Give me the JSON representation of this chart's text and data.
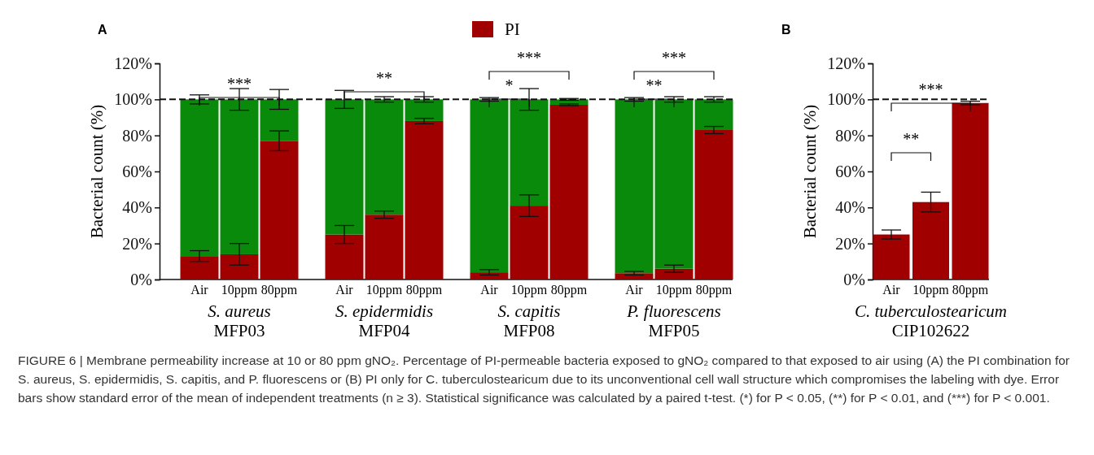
{
  "chart_data": [
    {
      "type": "bar",
      "title": "A",
      "stacked": true,
      "legend": "top",
      "grid": false,
      "ylabel": "Bacterial count (%)",
      "categories": [
        "Air",
        "10ppm",
        "80ppm",
        "Air",
        "10ppm",
        "80ppm",
        "Air",
        "10ppm",
        "80ppm",
        "Air",
        "10ppm",
        "80ppm"
      ],
      "series": [
        {
          "name": "PI",
          "color": "#a00000",
          "values": [
            13,
            14,
            77,
            25,
            36,
            88,
            4,
            41,
            97,
            3.5,
            6,
            83
          ],
          "errors": [
            3,
            6,
            5.5,
            5,
            2,
            1.5,
            1.5,
            6,
            0.5,
            1,
            2,
            2
          ]
        },
        {
          "color": "#0a8a0a",
          "values": [
            87,
            86,
            23,
            75,
            64,
            12,
            96,
            59,
            3,
            96.5,
            94,
            17
          ],
          "errors": [
            2.5,
            6,
            5.5,
            5,
            1.5,
            1.5,
            1,
            6,
            0.5,
            1,
            1.5,
            1.5
          ]
        }
      ],
      "ylim": [
        0,
        120
      ],
      "yticks": [
        {
          "value": 0,
          "label": "0%"
        },
        {
          "value": 20,
          "label": "20%"
        },
        {
          "value": 40,
          "label": "40%"
        },
        {
          "value": 60,
          "label": "60%"
        },
        {
          "value": 80,
          "label": "80%"
        },
        {
          "value": 100,
          "label": "100%"
        },
        {
          "value": 120,
          "label": "120%"
        }
      ],
      "ref_lines": [
        {
          "axis": "y",
          "value": 100,
          "line_style": "dashed"
        }
      ],
      "annotations": [
        "***",
        "**",
        "*",
        "***",
        "**",
        "***",
        "S. aureus",
        "MFP03",
        "S. epidermidis",
        "MFP04",
        "S. capitis",
        "MFP08",
        "P. fluorescens",
        "MFP05",
        "FIGURE 6 | Membrane permeability increase at 10 or 80 ppm gNO₂. Percentage of PI-permeable bacteria exposed to gNO₂ compared to that exposed to air using (A) the PI combination for S. aureus, S. epidermidis, S. capitis, and P. fluorescens or (B) PI only for C. tuberculostearicum due to its unconventional cell wall structure which compromises the labeling with dye. Error bars show standard error of the mean of independent treatments (n ≥ 3). Statistical significance was calculated by a paired t-test. (*) for P < 0.05, (**) for P < 0.01, and (***) for P < 0.001."
      ]
    },
    {
      "type": "bar",
      "title": "B",
      "grid": false,
      "ylabel": "Bacterial count (%)",
      "categories": [
        "Air",
        "10ppm",
        "80ppm"
      ],
      "series": [
        {
          "color": "#a00000",
          "values": [
            25,
            43,
            98
          ],
          "errors": [
            2.5,
            5.5,
            1
          ]
        }
      ],
      "ylim": [
        0,
        120
      ],
      "yticks": [
        {
          "value": 0,
          "label": "0%"
        },
        {
          "value": 20,
          "label": "20%"
        },
        {
          "value": 40,
          "label": "40%"
        },
        {
          "value": 60,
          "label": "60%"
        },
        {
          "value": 80,
          "label": "80%"
        },
        {
          "value": 100,
          "label": "100%"
        },
        {
          "value": 120,
          "label": "120%"
        }
      ],
      "ref_lines": [
        {
          "axis": "y",
          "value": 100,
          "line_style": "dashed"
        }
      ],
      "annotations": [
        "***",
        "**",
        "C. tuberculostearicum",
        "CIP102622"
      ]
    }
  ]
}
